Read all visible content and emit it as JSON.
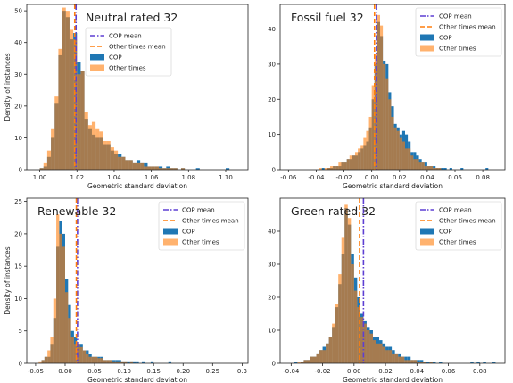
{
  "chart_data": [
    {
      "type": "histogram",
      "title": "Neutral rated 32",
      "xlabel": "Geometric standard deviation",
      "ylabel": "Density of instances",
      "xlim": [
        0.993,
        1.112
      ],
      "ylim": [
        0,
        52
      ],
      "xticks": [
        1.0,
        1.02,
        1.04,
        1.06,
        1.08,
        1.1
      ],
      "xtick_labels": [
        "1.00",
        "1.02",
        "1.04",
        "1.06",
        "1.08",
        "1.10"
      ],
      "yticks": [
        0,
        10,
        20,
        30,
        40,
        50
      ],
      "ytick_labels": [
        "0",
        "10",
        "20",
        "30",
        "40",
        "50"
      ],
      "legend_position": "top-left",
      "bins": {
        "start": 1.0,
        "width": 0.002
      },
      "series": [
        {
          "name": "COP",
          "kind": "bar",
          "color": "#1f77b4",
          "values": [
            0.5,
            1,
            4,
            10,
            21,
            36,
            50,
            48,
            41,
            43,
            34,
            31,
            16,
            13,
            11,
            10,
            10,
            8,
            8,
            6,
            5,
            5,
            4,
            3,
            3,
            2,
            3,
            2,
            2,
            1,
            1,
            1,
            1,
            0.5,
            1,
            0.5,
            0.5,
            0,
            0.5,
            0,
            0,
            0,
            0.5,
            0,
            0,
            0,
            0,
            0,
            0,
            0,
            0.5
          ]
        },
        {
          "name": "Other times",
          "kind": "bar",
          "color": "#ff7f0e",
          "alpha": 0.6,
          "values": [
            0.5,
            2,
            6,
            13,
            23,
            38,
            51,
            50,
            44,
            41,
            30,
            31,
            18,
            14,
            15,
            13,
            12,
            9,
            9,
            7,
            6,
            4,
            4,
            3,
            3,
            2,
            2,
            2,
            1,
            1,
            1,
            1,
            0.5,
            0.5,
            0.5,
            0.5,
            0.5,
            0,
            0.5,
            0,
            0,
            0,
            0,
            0,
            0,
            0,
            0,
            0,
            0,
            0,
            0
          ]
        },
        {
          "name": "COP mean",
          "kind": "vline",
          "color": "#5d3fd3",
          "style": "dashdot",
          "x": 1.0195
        },
        {
          "name": "Other times mean",
          "kind": "vline",
          "color": "#ff7f0e",
          "style": "dashed",
          "x": 1.0188
        }
      ]
    },
    {
      "type": "histogram",
      "title": "Fossil fuel 32",
      "xlabel": "Geometric standard deviation",
      "ylabel": "",
      "xlim": [
        -0.066,
        0.096
      ],
      "ylim": [
        0,
        47
      ],
      "xticks": [
        -0.06,
        -0.04,
        -0.02,
        0.0,
        0.02,
        0.04,
        0.06,
        0.08
      ],
      "xtick_labels": [
        "-0.06",
        "-0.04",
        "-0.02",
        "0.00",
        "0.02",
        "0.04",
        "0.06",
        "0.08"
      ],
      "yticks": [
        0,
        10,
        20,
        30,
        40
      ],
      "ytick_labels": [
        "0",
        "10",
        "20",
        "30",
        "40"
      ],
      "legend_position": "top-right",
      "bins": {
        "start": -0.04,
        "width": 0.002
      },
      "series": [
        {
          "name": "COP",
          "kind": "bar",
          "color": "#1f77b4",
          "values": [
            0,
            0,
            0.5,
            0,
            0.5,
            0.5,
            1,
            1,
            1,
            2,
            2,
            3,
            3,
            4,
            4,
            5,
            6,
            7,
            8,
            12,
            20,
            30,
            42,
            38,
            31,
            30,
            22,
            18,
            13,
            12,
            10,
            11,
            10,
            8,
            5,
            5,
            4,
            3,
            2,
            2,
            1,
            1,
            1,
            0.5,
            0.5,
            0.5,
            0.5,
            0,
            0.5,
            0,
            0,
            0,
            0.5,
            0,
            0,
            0,
            0,
            0,
            0,
            0,
            0,
            0.5
          ]
        },
        {
          "name": "Other times",
          "kind": "bar",
          "color": "#ff7f0e",
          "alpha": 0.6,
          "values": [
            0,
            0.5,
            0,
            0.5,
            0.5,
            1,
            1,
            1,
            2,
            2,
            2,
            3,
            4,
            4,
            5,
            6,
            7,
            9,
            11,
            15,
            24,
            33,
            44,
            41,
            30,
            26,
            20,
            15,
            12,
            11,
            9,
            8,
            6,
            6,
            4,
            3,
            3,
            2,
            2,
            1,
            1,
            1,
            0.5,
            0.5,
            0.5,
            0,
            0,
            0,
            0,
            0,
            0,
            0,
            0,
            0,
            0,
            0,
            0,
            0,
            0,
            0,
            0,
            0
          ]
        },
        {
          "name": "COP mean",
          "kind": "vline",
          "color": "#5d3fd3",
          "style": "dashdot",
          "x": 0.0035
        },
        {
          "name": "Other times mean",
          "kind": "vline",
          "color": "#ff7f0e",
          "style": "dashed",
          "x": 0.002
        }
      ]
    },
    {
      "type": "histogram",
      "title": "Renewable 32",
      "xlabel": "Geometric standard deviation",
      "ylabel": "Density of instances",
      "xlim": [
        -0.065,
        0.31
      ],
      "ylim": [
        0,
        25.5
      ],
      "xticks": [
        -0.05,
        0.0,
        0.05,
        0.1,
        0.15,
        0.2,
        0.25,
        0.3
      ],
      "xtick_labels": [
        "-0.05",
        "0.00",
        "0.05",
        "0.10",
        "0.15",
        "0.20",
        "0.25",
        "0.3"
      ],
      "yticks": [
        0,
        5,
        10,
        15,
        20,
        25
      ],
      "ytick_labels": [
        "0",
        "5",
        "10",
        "15",
        "20",
        "25"
      ],
      "legend_position": "top-right",
      "bins": {
        "start": -0.045,
        "width": 0.005
      },
      "series": [
        {
          "name": "COP",
          "kind": "bar",
          "color": "#1f77b4",
          "values": [
            0,
            0.5,
            1,
            1,
            3,
            7,
            18,
            22,
            20,
            13,
            9,
            5,
            4,
            3,
            3,
            2,
            2,
            1.5,
            1,
            1,
            1,
            1,
            0.5,
            0.5,
            0.5,
            0.5,
            0.5,
            0.5,
            0.3,
            0.3,
            0.3,
            0.3,
            0.3,
            0.3,
            0,
            0.3,
            0,
            0,
            0.3,
            0,
            0,
            0,
            0,
            0,
            0.3
          ]
        },
        {
          "name": "Other times",
          "kind": "bar",
          "color": "#ff7f0e",
          "alpha": 0.6,
          "values": [
            0.3,
            0.5,
            1,
            2,
            4,
            10,
            23,
            20,
            18,
            11,
            7,
            4,
            3,
            3,
            2.5,
            2,
            1.5,
            1,
            1,
            1,
            0.8,
            0.8,
            0.5,
            0.5,
            0.5,
            0.3,
            0.3,
            0.3,
            0.3,
            0.3,
            0,
            0.3,
            0,
            0,
            0,
            0,
            0,
            0,
            0,
            0,
            0,
            0,
            0,
            0,
            0
          ]
        },
        {
          "name": "COP mean",
          "kind": "vline",
          "color": "#5d3fd3",
          "style": "dashdot",
          "x": 0.021
        },
        {
          "name": "Other times mean",
          "kind": "vline",
          "color": "#ff7f0e",
          "style": "dashed",
          "x": 0.019
        }
      ]
    },
    {
      "type": "histogram",
      "title": "Green rated 32",
      "xlabel": "Geometric standard deviation",
      "ylabel": "",
      "xlim": [
        -0.047,
        0.096
      ],
      "ylim": [
        0,
        50
      ],
      "xticks": [
        -0.04,
        -0.02,
        0.0,
        0.02,
        0.04,
        0.06,
        0.08
      ],
      "xtick_labels": [
        "-0.04",
        "-0.02",
        "0.00",
        "0.02",
        "0.04",
        "0.06",
        "0.08"
      ],
      "yticks": [
        0,
        10,
        20,
        30,
        40
      ],
      "ytick_labels": [
        "0",
        "10",
        "20",
        "30",
        "40"
      ],
      "legend_position": "top-right",
      "bins": {
        "start": -0.04,
        "width": 0.002
      },
      "series": [
        {
          "name": "COP",
          "kind": "bar",
          "color": "#1f77b4",
          "values": [
            0,
            0.5,
            0,
            0.5,
            1,
            1,
            2,
            2,
            3,
            4,
            5,
            6,
            8,
            11,
            17,
            24,
            33,
            47,
            42,
            33,
            26,
            20,
            15,
            13,
            11,
            10,
            8,
            8,
            7,
            6,
            5,
            5,
            4,
            3,
            3,
            2,
            2,
            2,
            1,
            1,
            1,
            1,
            0.5,
            0.5,
            0.5,
            0.5,
            0,
            0.5,
            0,
            0,
            0,
            0,
            0,
            0,
            0,
            0,
            0,
            0.5,
            0,
            0.5,
            0,
            0.5,
            0,
            0,
            0.5
          ]
        },
        {
          "name": "Other times",
          "kind": "bar",
          "color": "#ff7f0e",
          "alpha": 0.6,
          "values": [
            0,
            0,
            0.5,
            0.5,
            1,
            1,
            2,
            2,
            3,
            4,
            4,
            6,
            8,
            12,
            18,
            27,
            38,
            48,
            44,
            30,
            22,
            17,
            14,
            12,
            10,
            9,
            7,
            6,
            6,
            5,
            4,
            4,
            3,
            3,
            2,
            2,
            1,
            1,
            1,
            1,
            0.5,
            0.5,
            0.5,
            0,
            0.5,
            0,
            0,
            0,
            0,
            0,
            0,
            0,
            0,
            0,
            0,
            0,
            0,
            0,
            0,
            0,
            0,
            0,
            0,
            0,
            0
          ]
        },
        {
          "name": "COP mean",
          "kind": "vline",
          "color": "#5d3fd3",
          "style": "dashdot",
          "x": 0.006
        },
        {
          "name": "Other times mean",
          "kind": "vline",
          "color": "#ff7f0e",
          "style": "dashed",
          "x": 0.0035
        }
      ]
    }
  ]
}
